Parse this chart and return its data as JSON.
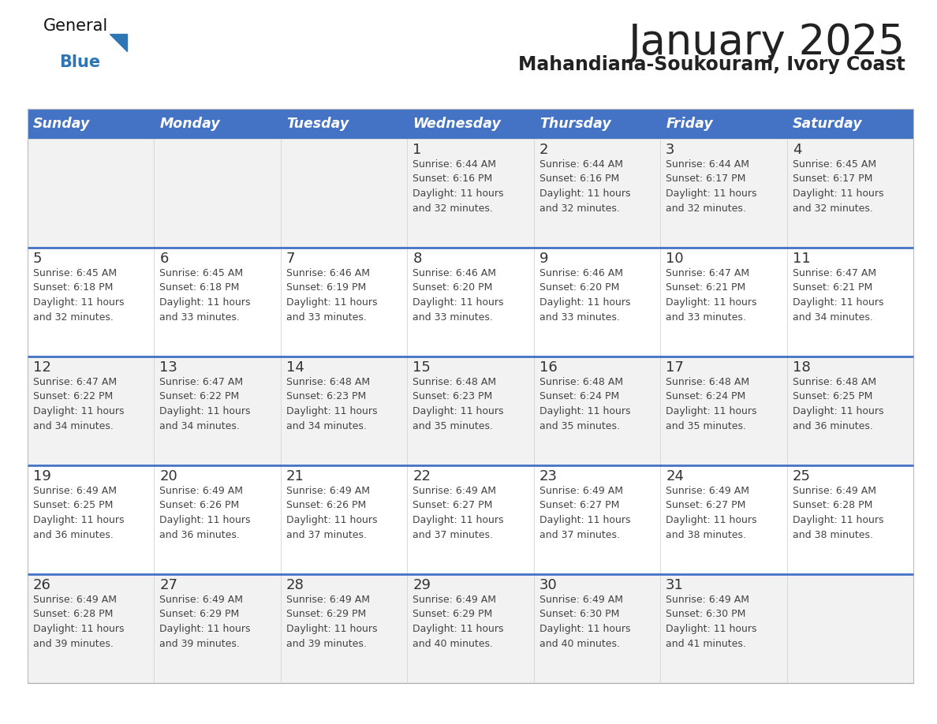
{
  "title": "January 2025",
  "subtitle": "Mahandiana-Soukourani, Ivory Coast",
  "days_of_week": [
    "Sunday",
    "Monday",
    "Tuesday",
    "Wednesday",
    "Thursday",
    "Friday",
    "Saturday"
  ],
  "header_bg_color": "#4472C4",
  "header_text_color": "#FFFFFF",
  "row_bg_odd": "#F2F2F2",
  "row_bg_even": "#FFFFFF",
  "separator_color": "#4472C4",
  "title_color": "#222222",
  "subtitle_color": "#222222",
  "day_number_color": "#333333",
  "cell_text_color": "#444444",
  "logo_general_color": "#111111",
  "logo_blue_color": "#2E75B6",
  "logo_triangle_color": "#2E75B6",
  "calendar": [
    [
      null,
      null,
      null,
      {
        "day": 1,
        "sunrise": "6:44 AM",
        "sunset": "6:16 PM",
        "daylight_h": "11 hours",
        "daylight_m": "and 32 minutes."
      },
      {
        "day": 2,
        "sunrise": "6:44 AM",
        "sunset": "6:16 PM",
        "daylight_h": "11 hours",
        "daylight_m": "and 32 minutes."
      },
      {
        "day": 3,
        "sunrise": "6:44 AM",
        "sunset": "6:17 PM",
        "daylight_h": "11 hours",
        "daylight_m": "and 32 minutes."
      },
      {
        "day": 4,
        "sunrise": "6:45 AM",
        "sunset": "6:17 PM",
        "daylight_h": "11 hours",
        "daylight_m": "and 32 minutes."
      }
    ],
    [
      {
        "day": 5,
        "sunrise": "6:45 AM",
        "sunset": "6:18 PM",
        "daylight_h": "11 hours",
        "daylight_m": "and 32 minutes."
      },
      {
        "day": 6,
        "sunrise": "6:45 AM",
        "sunset": "6:18 PM",
        "daylight_h": "11 hours",
        "daylight_m": "and 33 minutes."
      },
      {
        "day": 7,
        "sunrise": "6:46 AM",
        "sunset": "6:19 PM",
        "daylight_h": "11 hours",
        "daylight_m": "and 33 minutes."
      },
      {
        "day": 8,
        "sunrise": "6:46 AM",
        "sunset": "6:20 PM",
        "daylight_h": "11 hours",
        "daylight_m": "and 33 minutes."
      },
      {
        "day": 9,
        "sunrise": "6:46 AM",
        "sunset": "6:20 PM",
        "daylight_h": "11 hours",
        "daylight_m": "and 33 minutes."
      },
      {
        "day": 10,
        "sunrise": "6:47 AM",
        "sunset": "6:21 PM",
        "daylight_h": "11 hours",
        "daylight_m": "and 33 minutes."
      },
      {
        "day": 11,
        "sunrise": "6:47 AM",
        "sunset": "6:21 PM",
        "daylight_h": "11 hours",
        "daylight_m": "and 34 minutes."
      }
    ],
    [
      {
        "day": 12,
        "sunrise": "6:47 AM",
        "sunset": "6:22 PM",
        "daylight_h": "11 hours",
        "daylight_m": "and 34 minutes."
      },
      {
        "day": 13,
        "sunrise": "6:47 AM",
        "sunset": "6:22 PM",
        "daylight_h": "11 hours",
        "daylight_m": "and 34 minutes."
      },
      {
        "day": 14,
        "sunrise": "6:48 AM",
        "sunset": "6:23 PM",
        "daylight_h": "11 hours",
        "daylight_m": "and 34 minutes."
      },
      {
        "day": 15,
        "sunrise": "6:48 AM",
        "sunset": "6:23 PM",
        "daylight_h": "11 hours",
        "daylight_m": "and 35 minutes."
      },
      {
        "day": 16,
        "sunrise": "6:48 AM",
        "sunset": "6:24 PM",
        "daylight_h": "11 hours",
        "daylight_m": "and 35 minutes."
      },
      {
        "day": 17,
        "sunrise": "6:48 AM",
        "sunset": "6:24 PM",
        "daylight_h": "11 hours",
        "daylight_m": "and 35 minutes."
      },
      {
        "day": 18,
        "sunrise": "6:48 AM",
        "sunset": "6:25 PM",
        "daylight_h": "11 hours",
        "daylight_m": "and 36 minutes."
      }
    ],
    [
      {
        "day": 19,
        "sunrise": "6:49 AM",
        "sunset": "6:25 PM",
        "daylight_h": "11 hours",
        "daylight_m": "and 36 minutes."
      },
      {
        "day": 20,
        "sunrise": "6:49 AM",
        "sunset": "6:26 PM",
        "daylight_h": "11 hours",
        "daylight_m": "and 36 minutes."
      },
      {
        "day": 21,
        "sunrise": "6:49 AM",
        "sunset": "6:26 PM",
        "daylight_h": "11 hours",
        "daylight_m": "and 37 minutes."
      },
      {
        "day": 22,
        "sunrise": "6:49 AM",
        "sunset": "6:27 PM",
        "daylight_h": "11 hours",
        "daylight_m": "and 37 minutes."
      },
      {
        "day": 23,
        "sunrise": "6:49 AM",
        "sunset": "6:27 PM",
        "daylight_h": "11 hours",
        "daylight_m": "and 37 minutes."
      },
      {
        "day": 24,
        "sunrise": "6:49 AM",
        "sunset": "6:27 PM",
        "daylight_h": "11 hours",
        "daylight_m": "and 38 minutes."
      },
      {
        "day": 25,
        "sunrise": "6:49 AM",
        "sunset": "6:28 PM",
        "daylight_h": "11 hours",
        "daylight_m": "and 38 minutes."
      }
    ],
    [
      {
        "day": 26,
        "sunrise": "6:49 AM",
        "sunset": "6:28 PM",
        "daylight_h": "11 hours",
        "daylight_m": "and 39 minutes."
      },
      {
        "day": 27,
        "sunrise": "6:49 AM",
        "sunset": "6:29 PM",
        "daylight_h": "11 hours",
        "daylight_m": "and 39 minutes."
      },
      {
        "day": 28,
        "sunrise": "6:49 AM",
        "sunset": "6:29 PM",
        "daylight_h": "11 hours",
        "daylight_m": "and 39 minutes."
      },
      {
        "day": 29,
        "sunrise": "6:49 AM",
        "sunset": "6:29 PM",
        "daylight_h": "11 hours",
        "daylight_m": "and 40 minutes."
      },
      {
        "day": 30,
        "sunrise": "6:49 AM",
        "sunset": "6:30 PM",
        "daylight_h": "11 hours",
        "daylight_m": "and 40 minutes."
      },
      {
        "day": 31,
        "sunrise": "6:49 AM",
        "sunset": "6:30 PM",
        "daylight_h": "11 hours",
        "daylight_m": "and 41 minutes."
      },
      null
    ]
  ]
}
